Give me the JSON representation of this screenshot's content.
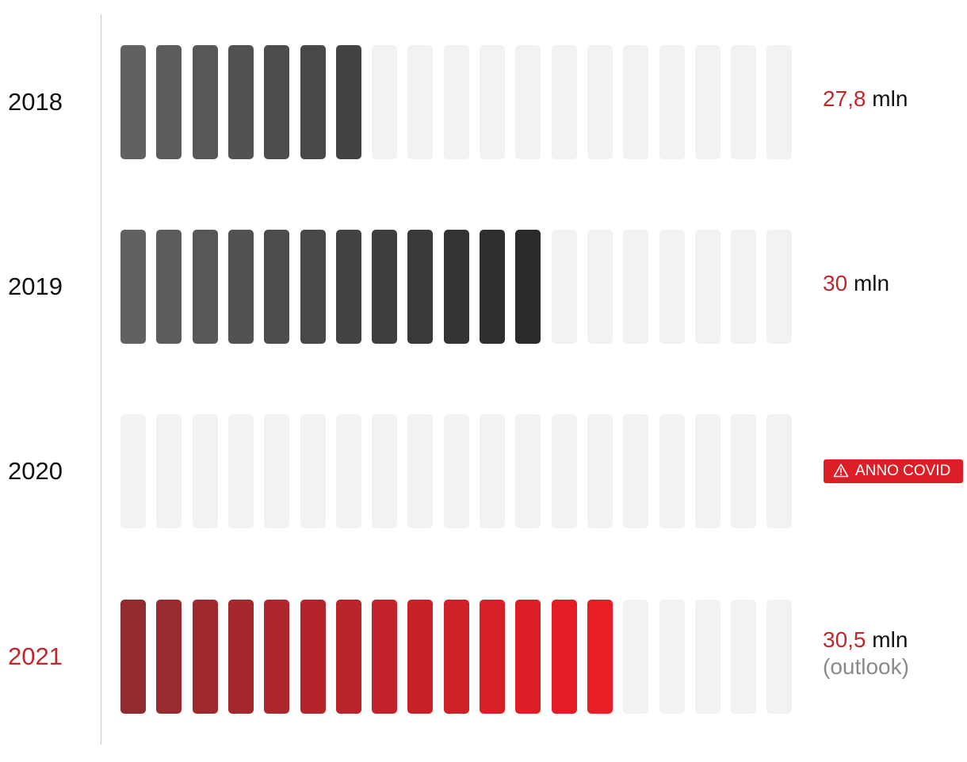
{
  "chart_data": {
    "type": "bar",
    "total_segments": 19,
    "categories": [
      "2018",
      "2019",
      "2020",
      "2021"
    ],
    "values": [
      7,
      12,
      0,
      14
    ],
    "value_labels": [
      {
        "number": "27,8",
        "unit": "mln",
        "note": ""
      },
      {
        "number": "30",
        "unit": "mln",
        "note": ""
      },
      {
        "number": "",
        "unit": "",
        "note": ""
      },
      {
        "number": "30,5",
        "unit": "mln",
        "note": "(outlook)"
      }
    ],
    "badge": {
      "text": "ANNO COVID",
      "icon": "warning-icon"
    },
    "highlight_category": "2021",
    "colors": {
      "empty": "#f2f2f2",
      "gray_start": "#616161",
      "gray_end": "#2a2a2a",
      "red_start": "#922b30",
      "red_end": "#ea1c24",
      "accent": "#c0282d",
      "badge": "#dc1f26"
    }
  }
}
